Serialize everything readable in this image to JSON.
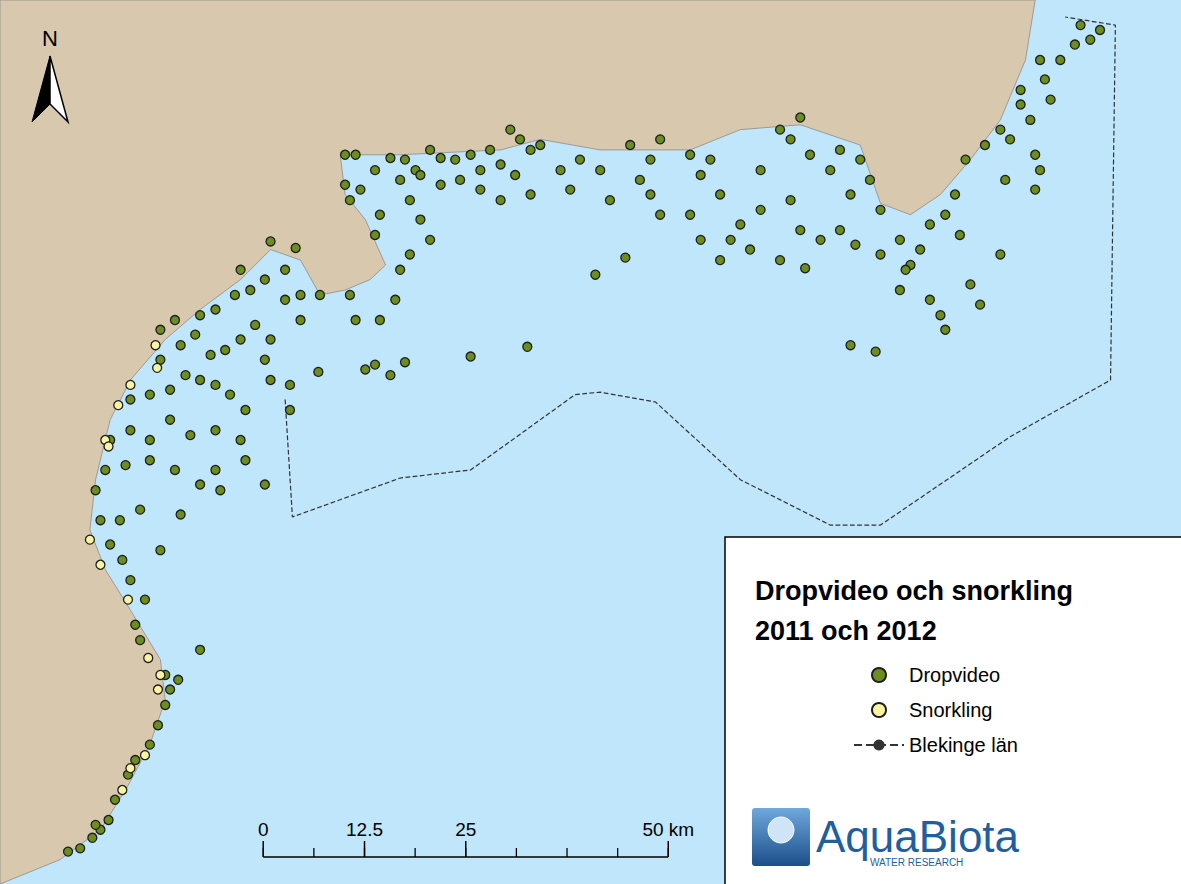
{
  "chart_data": {
    "type": "scatter",
    "title": "Dropvideo och snorkling\n2011 och 2012",
    "xlim": [
      -32.5,
      113.3
    ],
    "ylim": [
      0,
      109.1
    ],
    "tick_labels": false,
    "grid": false,
    "legend": "lower right",
    "series": [
      {
        "name": "Dropvideo",
        "type": "scatter",
        "color": "#6b8e1e",
        "marker": "circle",
        "points": [
          [
            -24.1,
            4.0
          ],
          [
            -22.6,
            4.4
          ],
          [
            -21.1,
            5.7
          ],
          [
            -20.1,
            6.7
          ],
          [
            -19.1,
            7.9
          ],
          [
            -20.7,
            7.3
          ],
          [
            -18.3,
            10.4
          ],
          [
            -16.7,
            13.5
          ],
          [
            -15.8,
            15.3
          ],
          [
            -14.0,
            17.2
          ],
          [
            -13.0,
            19.6
          ],
          [
            -12.1,
            22.1
          ],
          [
            -11.5,
            24.0
          ],
          [
            -10.5,
            25.2
          ],
          [
            -12.1,
            25.8
          ],
          [
            -7.8,
            28.9
          ],
          [
            -15.2,
            30.1
          ],
          [
            -15.8,
            32.0
          ],
          [
            -14.6,
            35.1
          ],
          [
            -16.4,
            37.5
          ],
          [
            -17.4,
            40.0
          ],
          [
            -18.9,
            41.9
          ],
          [
            -20.1,
            44.9
          ],
          [
            -17.7,
            44.9
          ],
          [
            -15.2,
            46.2
          ],
          [
            -12.7,
            41.2
          ],
          [
            -10.2,
            45.6
          ],
          [
            -20.7,
            48.6
          ],
          [
            -19.5,
            51.1
          ],
          [
            -17.0,
            51.7
          ],
          [
            -14.0,
            52.3
          ],
          [
            -10.9,
            51.1
          ],
          [
            -7.8,
            49.3
          ],
          [
            -5.9,
            51.1
          ],
          [
            -18.9,
            54.8
          ],
          [
            -16.4,
            56.0
          ],
          [
            -14.0,
            54.8
          ],
          [
            -11.5,
            57.3
          ],
          [
            -9.0,
            55.4
          ],
          [
            -5.9,
            56.0
          ],
          [
            -2.8,
            54.8
          ],
          [
            -2.2,
            52.3
          ],
          [
            0.2,
            49.3
          ],
          [
            -16.4,
            59.8
          ],
          [
            -14.0,
            60.4
          ],
          [
            -11.5,
            61.0
          ],
          [
            -9.6,
            62.8
          ],
          [
            -7.8,
            62.2
          ],
          [
            -5.9,
            61.6
          ],
          [
            -4.1,
            60.4
          ],
          [
            -2.2,
            58.5
          ],
          [
            3.3,
            58.5
          ],
          [
            3.3,
            61.6
          ],
          [
            6.8,
            63.2
          ],
          [
            -12.7,
            64.7
          ],
          [
            -10.2,
            66.5
          ],
          [
            -8.4,
            67.8
          ],
          [
            -6.5,
            65.3
          ],
          [
            -4.7,
            65.9
          ],
          [
            -2.8,
            67.2
          ],
          [
            -1.0,
            69.0
          ],
          [
            0.9,
            67.2
          ],
          [
            2.7,
            72.1
          ],
          [
            4.6,
            72.7
          ],
          [
            -12.7,
            68.4
          ],
          [
            -10.9,
            69.6
          ],
          [
            -7.8,
            70.2
          ],
          [
            -5.9,
            70.9
          ],
          [
            -3.5,
            72.7
          ],
          [
            -1.6,
            73.3
          ],
          [
            0.2,
            74.6
          ],
          [
            -2.8,
            75.8
          ],
          [
            0.9,
            79.3
          ],
          [
            4.0,
            78.5
          ],
          [
            2.7,
            75.8
          ],
          [
            4.6,
            69.6
          ],
          [
            7.0,
            72.7
          ],
          [
            0.9,
            62.2
          ],
          [
            -5.3,
            48.6
          ],
          [
            0.2,
            64.7
          ],
          [
            10.1,
            90.0
          ],
          [
            11.4,
            90.0
          ],
          [
            10.1,
            86.3
          ],
          [
            12.0,
            85.7
          ],
          [
            13.8,
            88.1
          ],
          [
            15.7,
            89.6
          ],
          [
            17.5,
            89.4
          ],
          [
            18.8,
            88.1
          ],
          [
            20.6,
            90.6
          ],
          [
            21.9,
            89.6
          ],
          [
            23.7,
            89.4
          ],
          [
            25.6,
            90.0
          ],
          [
            26.8,
            88.1
          ],
          [
            28.0,
            90.6
          ],
          [
            29.3,
            88.8
          ],
          [
            30.5,
            93.1
          ],
          [
            31.7,
            91.9
          ],
          [
            33.0,
            90.6
          ],
          [
            34.2,
            91.2
          ],
          [
            31.1,
            87.5
          ],
          [
            33.0,
            85.1
          ],
          [
            29.3,
            84.4
          ],
          [
            26.8,
            85.7
          ],
          [
            24.3,
            86.9
          ],
          [
            21.9,
            86.3
          ],
          [
            19.4,
            87.5
          ],
          [
            16.9,
            86.9
          ],
          [
            18.1,
            84.4
          ],
          [
            19.4,
            82.0
          ],
          [
            20.6,
            79.5
          ],
          [
            18.1,
            77.7
          ],
          [
            16.9,
            75.8
          ],
          [
            13.8,
            80.1
          ],
          [
            14.4,
            82.6
          ],
          [
            10.7,
            84.4
          ],
          [
            10.7,
            72.7
          ],
          [
            11.4,
            69.6
          ],
          [
            14.4,
            69.6
          ],
          [
            16.3,
            72.1
          ],
          [
            13.8,
            64.1
          ],
          [
            15.7,
            62.8
          ],
          [
            12.6,
            63.5
          ],
          [
            17.5,
            64.4
          ],
          [
            25.6,
            65.1
          ],
          [
            32.6,
            66.3
          ],
          [
            41.0,
            75.2
          ],
          [
            44.7,
            77.3
          ],
          [
            36.7,
            88.1
          ],
          [
            37.9,
            85.7
          ],
          [
            39.1,
            89.4
          ],
          [
            41.6,
            88.1
          ],
          [
            42.8,
            84.4
          ],
          [
            45.3,
            91.2
          ],
          [
            46.5,
            86.9
          ],
          [
            47.8,
            89.4
          ],
          [
            49.0,
            91.9
          ],
          [
            49.0,
            82.6
          ],
          [
            52.7,
            82.6
          ],
          [
            54.0,
            87.5
          ],
          [
            55.2,
            89.4
          ],
          [
            52.7,
            90.0
          ],
          [
            56.4,
            85.1
          ],
          [
            57.7,
            79.5
          ],
          [
            60.1,
            78.3
          ],
          [
            58.9,
            81.4
          ],
          [
            61.4,
            88.1
          ],
          [
            63.8,
            93.1
          ],
          [
            65.1,
            91.9
          ],
          [
            66.3,
            94.6
          ],
          [
            67.5,
            90.0
          ],
          [
            70.0,
            88.1
          ],
          [
            71.2,
            90.6
          ],
          [
            72.5,
            85.1
          ],
          [
            73.7,
            89.4
          ],
          [
            74.9,
            86.9
          ],
          [
            76.2,
            83.2
          ],
          [
            61.4,
            83.2
          ],
          [
            65.1,
            84.4
          ],
          [
            66.3,
            80.7
          ],
          [
            68.8,
            79.5
          ],
          [
            71.2,
            80.7
          ],
          [
            73.1,
            78.9
          ],
          [
            76.2,
            77.7
          ],
          [
            78.6,
            79.5
          ],
          [
            79.9,
            76.4
          ],
          [
            81.1,
            78.3
          ],
          [
            82.3,
            81.4
          ],
          [
            84.2,
            82.6
          ],
          [
            85.4,
            85.1
          ],
          [
            86.7,
            89.4
          ],
          [
            89.1,
            91.2
          ],
          [
            91.0,
            93.1
          ],
          [
            92.2,
            91.9
          ],
          [
            93.5,
            96.2
          ],
          [
            94.7,
            94.3
          ],
          [
            95.3,
            90.0
          ],
          [
            95.9,
            88.1
          ],
          [
            95.3,
            85.7
          ],
          [
            91.6,
            86.9
          ],
          [
            91.0,
            77.7
          ],
          [
            86.0,
            80.1
          ],
          [
            87.3,
            74.0
          ],
          [
            88.5,
            71.5
          ],
          [
            82.3,
            72.1
          ],
          [
            83.6,
            70.2
          ],
          [
            84.2,
            68.4
          ],
          [
            78.6,
            73.3
          ],
          [
            79.3,
            75.8
          ],
          [
            66.9,
            76.0
          ],
          [
            56.4,
            77.0
          ],
          [
            72.5,
            66.5
          ],
          [
            75.6,
            65.7
          ],
          [
            96.5,
            99.3
          ],
          [
            98.4,
            101.7
          ],
          [
            100.2,
            103.6
          ],
          [
            102.1,
            104.2
          ],
          [
            103.3,
            105.4
          ],
          [
            100.9,
            106.0
          ],
          [
            95.9,
            101.7
          ],
          [
            97.2,
            96.8
          ],
          [
            93.5,
            98.0
          ],
          [
            63.8,
            77.0
          ],
          [
            54.0,
            79.5
          ],
          [
            47.8,
            85.1
          ]
        ]
      },
      {
        "name": "Snorkling",
        "type": "scatter",
        "color": "#f8f4a2",
        "marker": "circle",
        "points": [
          [
            -13.3,
            66.5
          ],
          [
            -13.1,
            63.7
          ],
          [
            -16.4,
            61.6
          ],
          [
            -17.9,
            59.1
          ],
          [
            -19.5,
            54.8
          ],
          [
            -19.1,
            54.0
          ],
          [
            -21.4,
            42.5
          ],
          [
            -20.1,
            39.4
          ],
          [
            -16.7,
            35.1
          ],
          [
            -14.2,
            27.9
          ],
          [
            -12.7,
            25.8
          ],
          [
            -13.0,
            24.0
          ],
          [
            -16.4,
            14.3
          ],
          [
            -14.6,
            15.9
          ],
          [
            -17.4,
            11.6
          ]
        ]
      },
      {
        "name": "Blekinge län",
        "type": "line",
        "color": "#333333",
        "line_style": "dashed",
        "points": [
          [
            2.7,
            59.8
          ],
          [
            3.6,
            45.3
          ],
          [
            16.9,
            50.1
          ],
          [
            25.6,
            51.1
          ],
          [
            38.5,
            60.4
          ],
          [
            41.6,
            60.7
          ],
          [
            48.4,
            59.5
          ],
          [
            58.9,
            49.9
          ],
          [
            70.0,
            44.3
          ],
          [
            76.2,
            44.3
          ],
          [
            92.2,
            55.2
          ],
          [
            104.6,
            62.2
          ],
          [
            105.2,
            106.0
          ],
          [
            99.0,
            107.0
          ]
        ]
      }
    ],
    "land": {
      "color": "#d8c9ae",
      "points": [
        [
          -32.5,
          0
        ],
        [
          -25.1,
          3.0
        ],
        [
          -20.1,
          6.7
        ],
        [
          -17.0,
          11.6
        ],
        [
          -14.0,
          17.2
        ],
        [
          -12.1,
          22.7
        ],
        [
          -12.7,
          27.7
        ],
        [
          -16.4,
          33.8
        ],
        [
          -19.5,
          38.8
        ],
        [
          -21.4,
          43.7
        ],
        [
          -20.7,
          49.9
        ],
        [
          -18.9,
          57.3
        ],
        [
          -16.4,
          62.2
        ],
        [
          -12.1,
          67.2
        ],
        [
          -7.8,
          70.9
        ],
        [
          -2.8,
          74.6
        ],
        [
          0.9,
          78.3
        ],
        [
          4.6,
          77.0
        ],
        [
          7.0,
          72.7
        ],
        [
          10.1,
          73.3
        ],
        [
          13.2,
          74.6
        ],
        [
          15.1,
          76.4
        ],
        [
          12.6,
          82.0
        ],
        [
          10.1,
          85.1
        ],
        [
          9.5,
          90.0
        ],
        [
          16.9,
          90.0
        ],
        [
          29.3,
          90.6
        ],
        [
          34.2,
          91.9
        ],
        [
          41.6,
          90.6
        ],
        [
          52.7,
          90.6
        ],
        [
          58.9,
          93.1
        ],
        [
          66.3,
          93.7
        ],
        [
          73.7,
          91.2
        ],
        [
          76.2,
          84.0
        ],
        [
          79.9,
          82.6
        ],
        [
          83.6,
          85.1
        ],
        [
          87.3,
          89.4
        ],
        [
          91.0,
          94.3
        ],
        [
          94.1,
          101.7
        ],
        [
          95.3,
          109.1
        ],
        [
          -32.5,
          109.1
        ]
      ]
    },
    "scale_bar": {
      "ticks": [
        0,
        12.5,
        {
          "value": 25,
          "label": "25"
        },
        {
          "value": 50,
          "label": "50 km"
        }
      ],
      "minor_ticks": [
        0,
        6.25,
        12.5,
        18.75,
        25,
        31.25,
        37.5,
        43.75,
        50
      ]
    },
    "north_label": "N",
    "logo": {
      "name": "AquaBiota",
      "tagline": "WATER RESEARCH"
    }
  }
}
